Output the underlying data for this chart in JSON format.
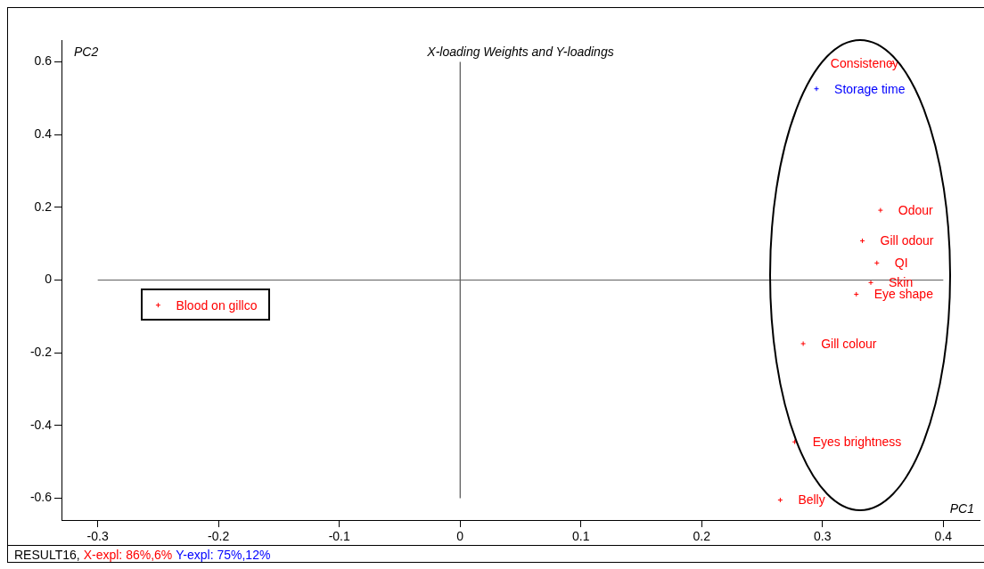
{
  "chart_data": {
    "type": "scatter",
    "title": "X-loading Weights and Y-loadings",
    "xlabel": "PC1",
    "ylabel": "PC2",
    "xlim": [
      -0.33,
      0.43
    ],
    "ylim": [
      -0.66,
      0.66
    ],
    "xticks": [
      -0.3,
      -0.2,
      -0.1,
      0,
      0.1,
      0.2,
      0.3,
      0.4
    ],
    "yticks": [
      -0.6,
      -0.4,
      -0.2,
      0,
      0.2,
      0.4,
      0.6
    ],
    "marker": "cross",
    "series": [
      {
        "color": "#ff0000",
        "x": [
          0.357,
          0.348,
          0.333,
          0.345,
          0.34,
          0.328,
          0.284,
          0.277,
          0.265,
          -0.25
        ],
        "values": [
          0.595,
          0.192,
          0.108,
          0.047,
          -0.007,
          -0.039,
          -0.175,
          -0.445,
          -0.605,
          -0.069
        ],
        "value_labels": [
          "Consistency",
          "Odour",
          "Gill odour",
          "QI",
          "Skin",
          "Eye shape",
          "Gill colour",
          "Eyes brightness",
          "Belly",
          "Blood on gillco"
        ]
      },
      {
        "color": "#0000ff",
        "x": [
          0.295
        ],
        "values": [
          0.526
        ],
        "value_labels": [
          "Storage time"
        ]
      }
    ],
    "ref_lines": [
      {
        "axis": "x",
        "value": 0,
        "color": "#303030"
      },
      {
        "axis": "y",
        "value": 0,
        "color": "#606060"
      }
    ],
    "annotations": [
      "RESULT16,",
      "X-expl: 86%,6%",
      "Y-expl: 75%,12%"
    ]
  }
}
